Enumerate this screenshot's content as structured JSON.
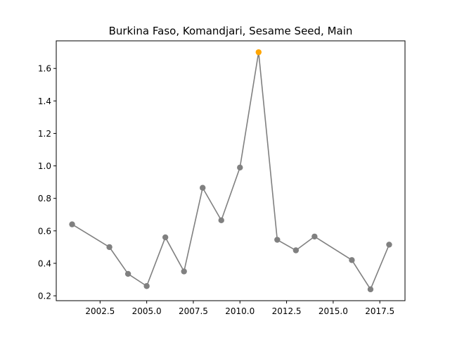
{
  "chart_data": {
    "type": "line",
    "title": "Burkina Faso, Komandjari, Sesame Seed, Main",
    "xlabel": "",
    "ylabel": "",
    "xlim": [
      2000.15,
      2018.85
    ],
    "ylim": [
      0.17,
      1.77
    ],
    "xticks": [
      {
        "value": 2002.5,
        "label": "2002.5"
      },
      {
        "value": 2005.0,
        "label": "2005.0"
      },
      {
        "value": 2007.5,
        "label": "2007.5"
      },
      {
        "value": 2010.0,
        "label": "2010.0"
      },
      {
        "value": 2012.5,
        "label": "2012.5"
      },
      {
        "value": 2015.0,
        "label": "2015.0"
      },
      {
        "value": 2017.5,
        "label": "2017.5"
      }
    ],
    "yticks": [
      {
        "value": 0.2,
        "label": "0.2"
      },
      {
        "value": 0.4,
        "label": "0.4"
      },
      {
        "value": 0.6,
        "label": "0.6"
      },
      {
        "value": 0.8,
        "label": "0.8"
      },
      {
        "value": 1.0,
        "label": "1.0"
      },
      {
        "value": 1.2,
        "label": "1.2"
      },
      {
        "value": 1.4,
        "label": "1.4"
      },
      {
        "value": 1.6,
        "label": "1.6"
      }
    ],
    "grid": false,
    "series": [
      {
        "color": "#808080",
        "highlight_color": "#FFA500",
        "points": [
          {
            "x": 2001,
            "y": 0.64
          },
          {
            "x": 2003,
            "y": 0.5
          },
          {
            "x": 2004,
            "y": 0.335
          },
          {
            "x": 2005,
            "y": 0.26
          },
          {
            "x": 2006,
            "y": 0.56
          },
          {
            "x": 2007,
            "y": 0.35
          },
          {
            "x": 2008,
            "y": 0.865
          },
          {
            "x": 2009,
            "y": 0.665
          },
          {
            "x": 2010,
            "y": 0.99
          },
          {
            "x": 2011,
            "y": 1.7,
            "highlight": true
          },
          {
            "x": 2012,
            "y": 0.545
          },
          {
            "x": 2013,
            "y": 0.48
          },
          {
            "x": 2014,
            "y": 0.565
          },
          {
            "x": 2016,
            "y": 0.42
          },
          {
            "x": 2017,
            "y": 0.24
          },
          {
            "x": 2018,
            "y": 0.515
          }
        ]
      }
    ]
  }
}
